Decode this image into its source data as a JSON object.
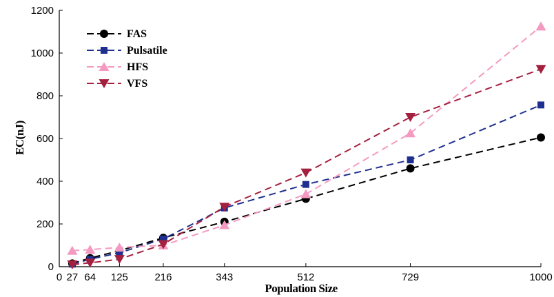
{
  "chart_data": {
    "type": "line",
    "xlabel": "Population Size",
    "ylabel": "EC(nJ)",
    "x": [
      27,
      64,
      125,
      216,
      343,
      512,
      729,
      1000
    ],
    "x_ticks": [
      "0",
      "27",
      "64",
      "125",
      "216",
      "343",
      "512",
      "729",
      "1000"
    ],
    "x_tick_values": [
      0,
      27,
      64,
      125,
      216,
      343,
      512,
      729,
      1000
    ],
    "y_ticks": [
      "0",
      "200",
      "400",
      "600",
      "800",
      "1000",
      "1200"
    ],
    "y_tick_values": [
      0,
      200,
      400,
      600,
      800,
      1000,
      1200
    ],
    "xlim": [
      0,
      1000
    ],
    "ylim": [
      0,
      1200
    ],
    "grid": false,
    "legend_position": "top-left",
    "series": [
      {
        "name": "FAS",
        "color": "#000000",
        "marker": "circle",
        "values": [
          15,
          40,
          75,
          135,
          210,
          318,
          460,
          605
        ]
      },
      {
        "name": "Pulsatile",
        "color": "#1f2f8f",
        "marker": "square",
        "values": [
          12,
          35,
          65,
          130,
          275,
          385,
          500,
          757
        ]
      },
      {
        "name": "HFS",
        "color": "#f49ac1",
        "marker": "triangle-up",
        "values": [
          75,
          80,
          90,
          100,
          195,
          340,
          625,
          1125
        ]
      },
      {
        "name": "VFS",
        "color": "#a3203f",
        "marker": "triangle-down",
        "values": [
          10,
          18,
          35,
          105,
          280,
          440,
          700,
          925
        ]
      }
    ]
  }
}
